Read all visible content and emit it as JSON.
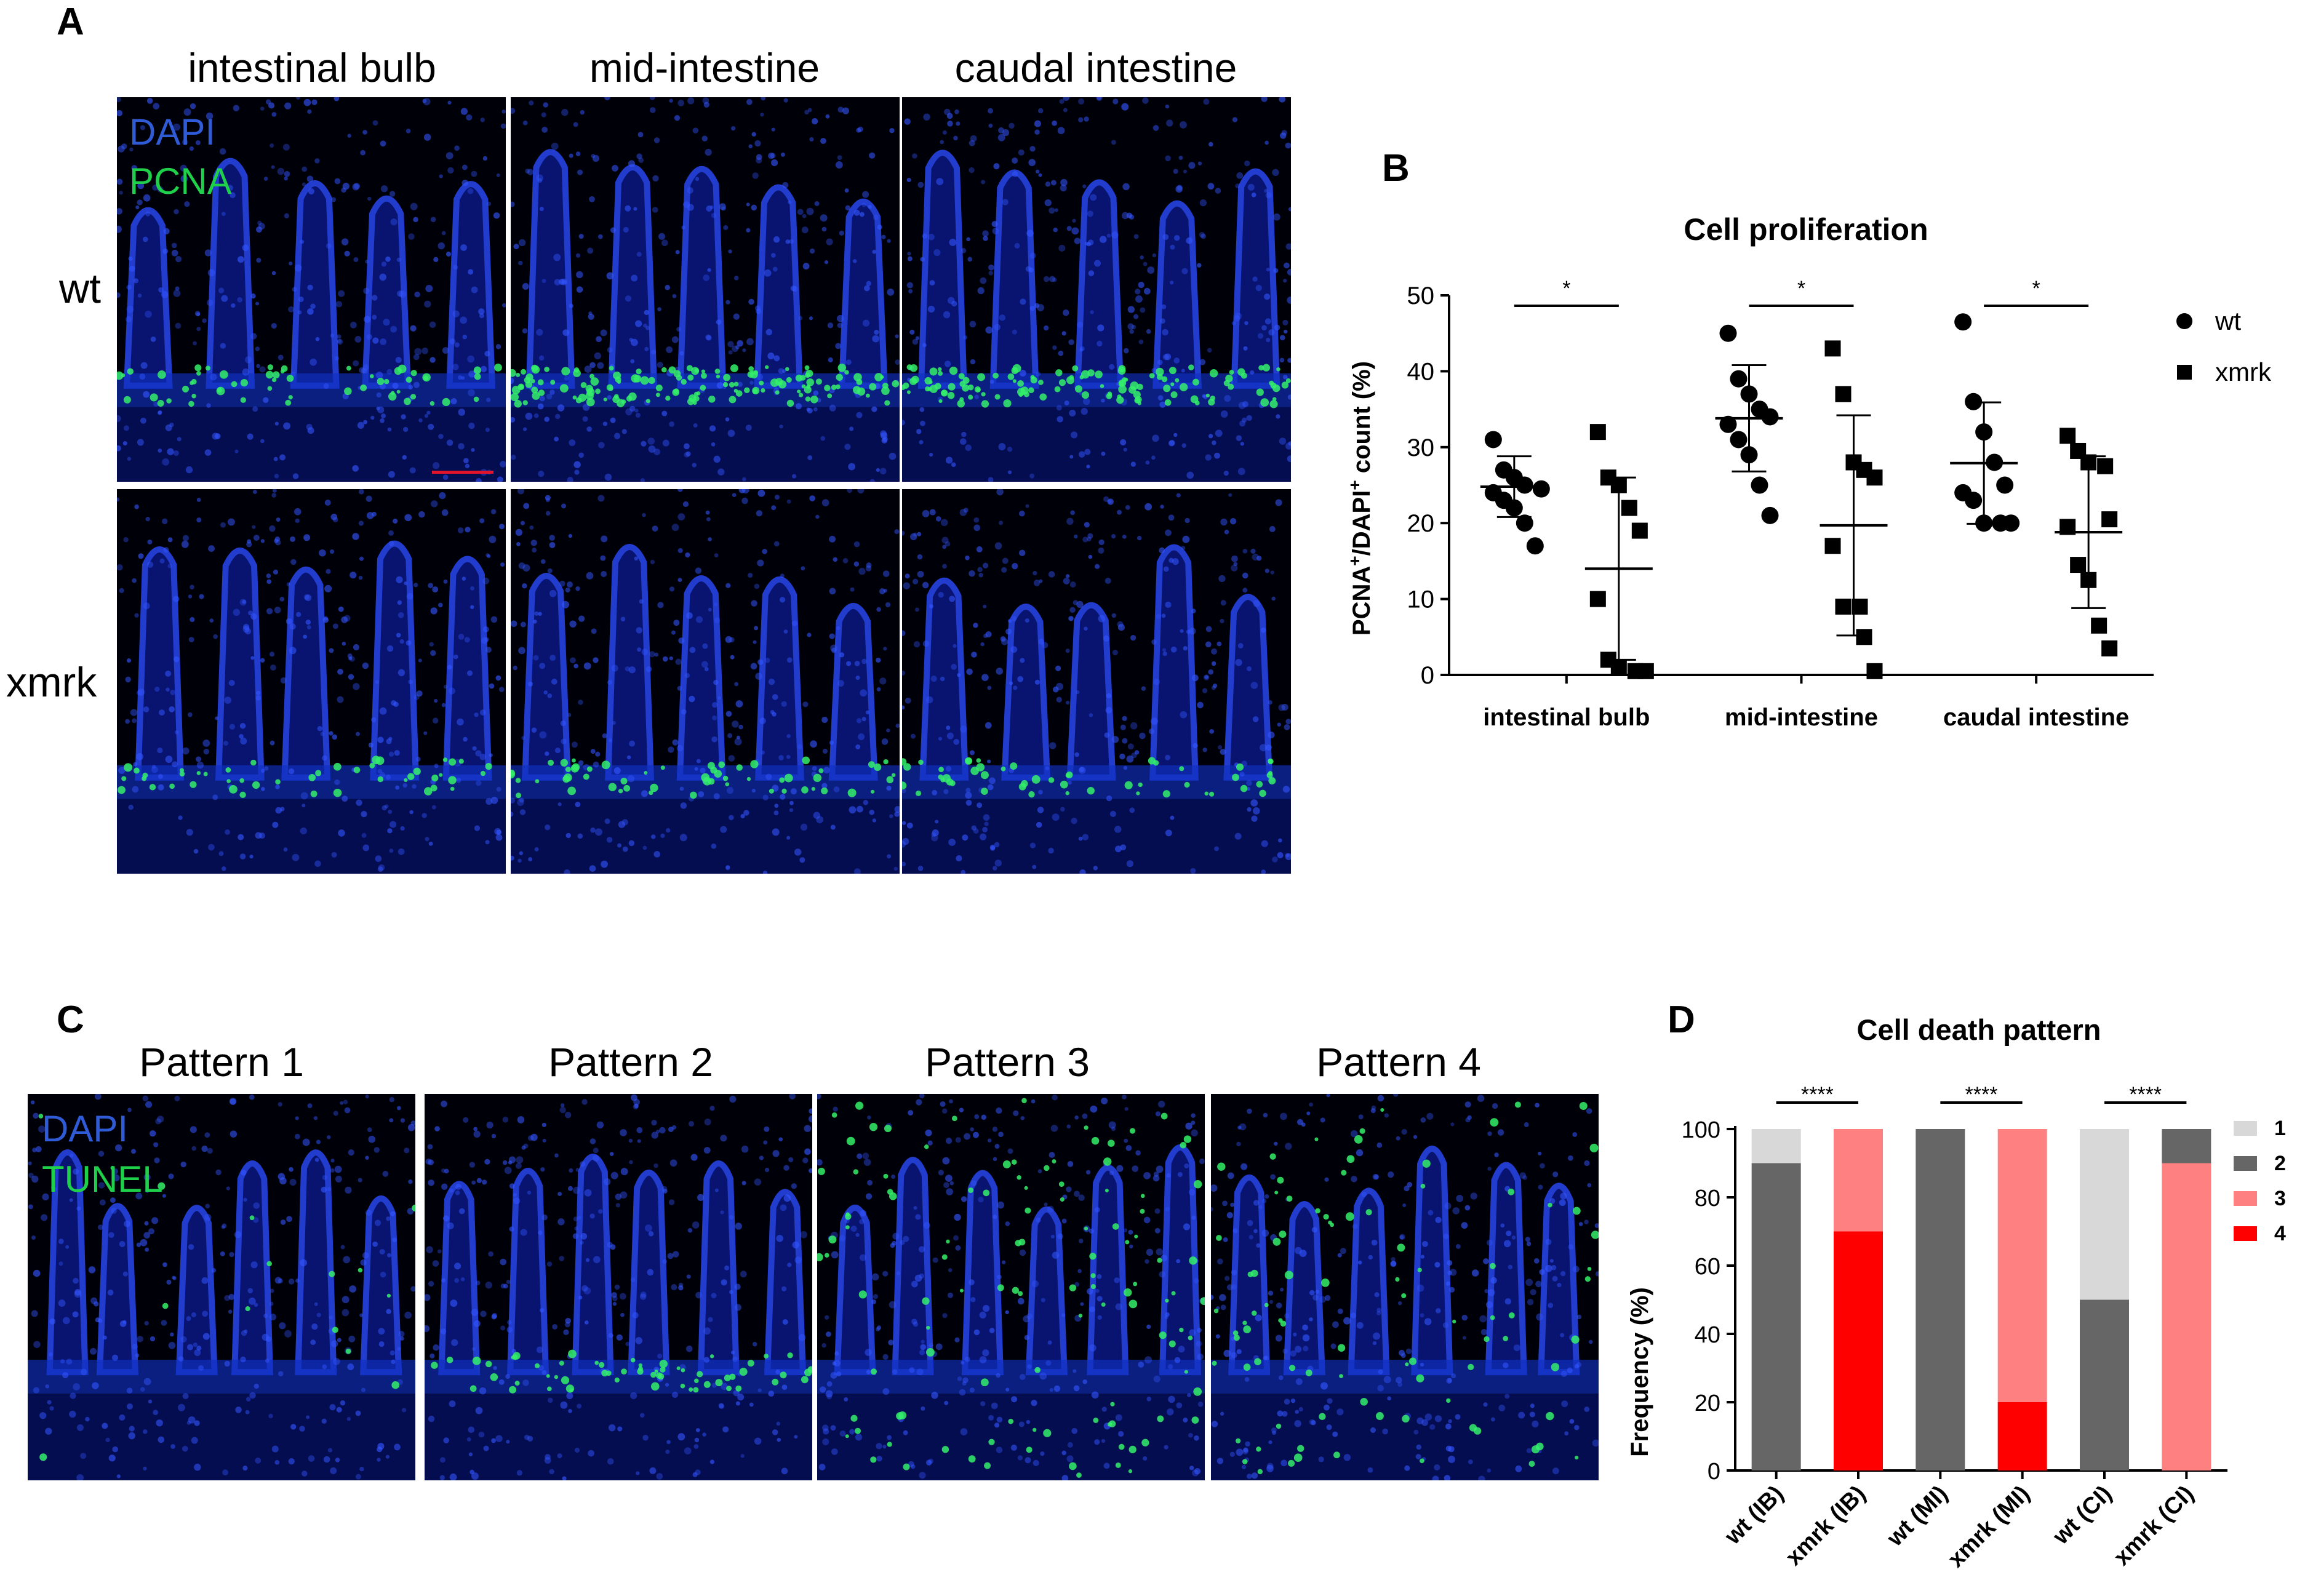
{
  "panel_letters": {
    "a": "A",
    "b": "B",
    "c": "C",
    "d": "D"
  },
  "panel_a": {
    "columns": [
      "intestinal bulb",
      "mid-intestine",
      "caudal intestine"
    ],
    "rows": [
      "wt",
      "xmrk"
    ],
    "stains": [
      "DAPI",
      "PCNA"
    ]
  },
  "panel_c": {
    "columns": [
      "Pattern 1",
      "Pattern 2",
      "Pattern 3",
      "Pattern 4"
    ],
    "stains": [
      "DAPI",
      "TUNEL"
    ]
  },
  "chart_data": [
    {
      "type": "scatter",
      "title": "Cell proliferation",
      "ylabel_parts": [
        "PCNA",
        "+",
        "/DAPI",
        "+",
        " count (%)"
      ],
      "ylim": [
        0,
        50
      ],
      "yticks": [
        0,
        10,
        20,
        30,
        40,
        50
      ],
      "categories": [
        "intestinal bulb",
        "mid-intestine",
        "caudal intestine"
      ],
      "legend": [
        {
          "name": "wt",
          "marker": "circle"
        },
        {
          "name": "xmrk",
          "marker": "square"
        }
      ],
      "legend_position": "top-right",
      "significance": [
        "*",
        "*",
        "*"
      ],
      "series": [
        {
          "name": "wt",
          "points": [
            [
              31,
              27,
              26,
              25,
              24.5,
              24,
              23,
              22,
              20,
              17
            ],
            [
              45,
              39,
              37,
              35,
              34,
              33,
              31,
              29,
              25,
              21
            ],
            [
              46.5,
              36,
              32,
              28,
              25,
              24,
              23,
              20,
              20,
              20
            ]
          ],
          "mean": [
            24.8,
            33.8,
            27.9
          ],
          "sd": [
            4,
            7,
            8
          ]
        },
        {
          "name": "xmrk",
          "points": [
            [
              32,
              26,
              25,
              22,
              19,
              10,
              2,
              1,
              0.5,
              0.5
            ],
            [
              43,
              37,
              28,
              27,
              26,
              17,
              9,
              9,
              5,
              0.5
            ],
            [
              31.5,
              29.5,
              28,
              27.5,
              20.5,
              19.5,
              14.5,
              12.5,
              6.5,
              3.5
            ]
          ],
          "mean": [
            14,
            19.7,
            18.8
          ],
          "sd": [
            12,
            14.5,
            10
          ]
        }
      ]
    },
    {
      "type": "bar",
      "stacked": true,
      "title": "Cell death pattern",
      "ylabel": "Frequency (%)",
      "ylim": [
        0,
        100
      ],
      "yticks": [
        0,
        20,
        40,
        60,
        80,
        100
      ],
      "categories": [
        "wt (IB)",
        "xmrk (IB)",
        "wt (MI)",
        "xmrk (MI)",
        "wt (CI)",
        "xmrk (CI)"
      ],
      "legend_position": "right",
      "significance": [
        "****",
        "****",
        "****"
      ],
      "series": [
        {
          "name": "4",
          "color": "#ff0000",
          "values": [
            0,
            70,
            0,
            20,
            0,
            0
          ]
        },
        {
          "name": "3",
          "color": "#ff8080",
          "values": [
            0,
            30,
            0,
            80,
            0,
            90
          ]
        },
        {
          "name": "2",
          "color": "#666666",
          "values": [
            90,
            0,
            100,
            0,
            50,
            10
          ]
        },
        {
          "name": "1",
          "color": "#d8d8d8",
          "values": [
            10,
            0,
            0,
            0,
            50,
            0
          ]
        }
      ],
      "legend_order": [
        "1",
        "2",
        "3",
        "4"
      ]
    }
  ]
}
